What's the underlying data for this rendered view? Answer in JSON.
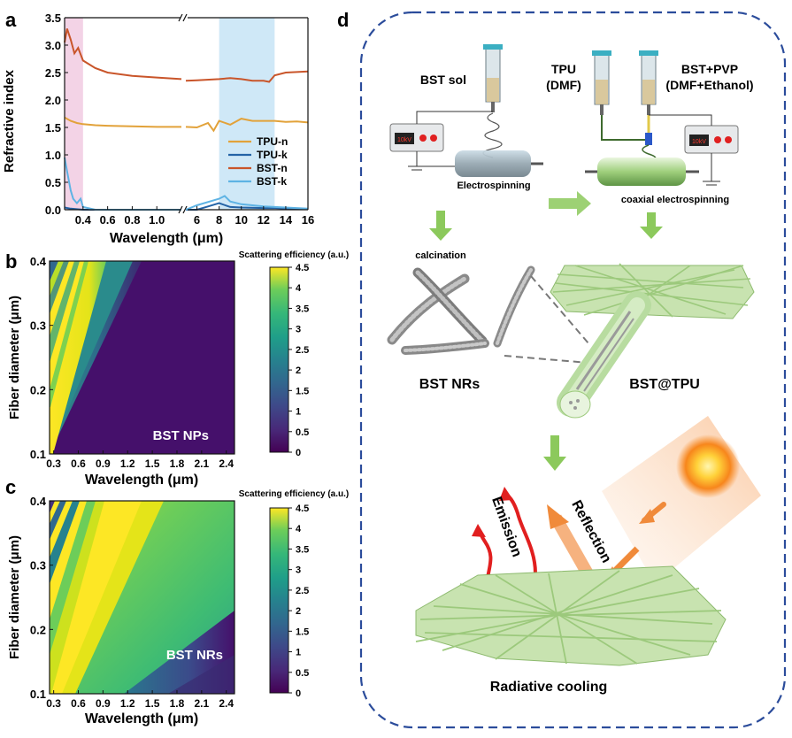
{
  "panel_letters": {
    "a": "a",
    "b": "b",
    "c": "c",
    "d": "d"
  },
  "colors": {
    "tpu_n": "#E2A23A",
    "tpu_k": "#2463A6",
    "bst_n": "#C9552A",
    "bst_k": "#5EB3E4",
    "uv_band": "#F3D3E6",
    "ir_band": "#CFE8F7",
    "dashed_border": "#2B4C9B",
    "arrow_green": "#7FBF4F",
    "mat_green": "#C8E3B0",
    "emission_red": "#E11F1F",
    "reflection_orange": "#F08A3A"
  },
  "chart_data": [
    {
      "type": "line",
      "panel": "a",
      "xlabel": "Wavelength (μm)",
      "ylabel": "Refractive index",
      "ylim": [
        0.0,
        3.5
      ],
      "yticks": [
        "0.0",
        "0.5",
        "1.0",
        "1.5",
        "2.0",
        "2.5",
        "3.0",
        "3.5"
      ],
      "x_segments": [
        {
          "range": [
            0.25,
            1.2
          ],
          "ticks": [
            "0.4",
            "0.6",
            "0.8",
            "1.0"
          ]
        },
        {
          "range": [
            5,
            16
          ],
          "ticks": [
            "6",
            "8",
            "10",
            "12",
            "14",
            "16"
          ]
        }
      ],
      "shaded_bands": [
        {
          "range": [
            0.25,
            0.4
          ],
          "color": "#F3D3E6"
        },
        {
          "range": [
            8,
            13
          ],
          "color": "#CFE8F7"
        }
      ],
      "legend_position": "right",
      "series": [
        {
          "name": "TPU-n",
          "color": "#E2A23A",
          "x": [
            0.25,
            0.3,
            0.35,
            0.4,
            0.5,
            0.6,
            0.8,
            1.0,
            1.2,
            5,
            6,
            7,
            7.5,
            8,
            9,
            10,
            11,
            12,
            13,
            14,
            15,
            16
          ],
          "y": [
            1.68,
            1.62,
            1.58,
            1.56,
            1.54,
            1.53,
            1.52,
            1.51,
            1.51,
            1.51,
            1.5,
            1.58,
            1.44,
            1.62,
            1.55,
            1.66,
            1.62,
            1.62,
            1.62,
            1.6,
            1.61,
            1.59
          ]
        },
        {
          "name": "TPU-k",
          "color": "#2463A6",
          "x": [
            0.25,
            0.3,
            0.35,
            0.4,
            0.6,
            1.0,
            1.2,
            5,
            6,
            7,
            8,
            9,
            10,
            12,
            13,
            14,
            16
          ],
          "y": [
            0.04,
            0.02,
            0.01,
            0.0,
            0.0,
            0.0,
            0.0,
            0.0,
            0.0,
            0.06,
            0.12,
            0.05,
            0.04,
            0.03,
            0.03,
            0.02,
            0.01
          ]
        },
        {
          "name": "BST-n",
          "color": "#C9552A",
          "x": [
            0.25,
            0.27,
            0.3,
            0.33,
            0.36,
            0.4,
            0.5,
            0.6,
            0.8,
            1.0,
            1.2,
            5,
            6,
            8,
            9,
            10,
            11,
            12,
            12.5,
            13,
            14,
            16
          ],
          "y": [
            3.05,
            3.3,
            3.1,
            2.85,
            2.95,
            2.72,
            2.58,
            2.5,
            2.44,
            2.41,
            2.38,
            2.35,
            2.36,
            2.38,
            2.4,
            2.38,
            2.35,
            2.35,
            2.33,
            2.45,
            2.5,
            2.52
          ]
        },
        {
          "name": "BST-k",
          "color": "#5EB3E4",
          "x": [
            0.25,
            0.27,
            0.3,
            0.32,
            0.35,
            0.38,
            0.4,
            0.5,
            1.0,
            1.2,
            5,
            6,
            8,
            8.5,
            9,
            10,
            11,
            12,
            13,
            14,
            16
          ],
          "y": [
            0.95,
            0.7,
            0.35,
            0.2,
            0.12,
            0.2,
            0.05,
            0.0,
            0.0,
            0.0,
            0.0,
            0.08,
            0.2,
            0.25,
            0.15,
            0.1,
            0.08,
            0.06,
            0.05,
            0.04,
            0.02
          ]
        }
      ]
    },
    {
      "type": "heatmap",
      "panel": "b",
      "xlabel": "Wavelength (μm)",
      "ylabel": "Fiber diameter (μm)",
      "xlim": [
        0.25,
        2.5
      ],
      "ylim": [
        0.1,
        0.4
      ],
      "xticks": [
        "0.3",
        "0.6",
        "0.9",
        "1.2",
        "1.5",
        "1.8",
        "2.1",
        "2.4"
      ],
      "yticks": [
        "0.1",
        "0.2",
        "0.3",
        "0.4"
      ],
      "colorbar_title": "Scattering efficiency (a.u.)",
      "colorbar_range": [
        0,
        4.5
      ],
      "colorbar_ticks": [
        "0",
        "0.5",
        "1",
        "1.5",
        "2",
        "2.5",
        "3",
        "3.5",
        "4",
        "4.5"
      ],
      "annotation": "BST NPs"
    },
    {
      "type": "heatmap",
      "panel": "c",
      "xlabel": "Wavelength (μm)",
      "ylabel": "Fiber diameter (μm)",
      "xlim": [
        0.25,
        2.5
      ],
      "ylim": [
        0.1,
        0.4
      ],
      "xticks": [
        "0.3",
        "0.6",
        "0.9",
        "1.2",
        "1.5",
        "1.8",
        "2.1",
        "2.4"
      ],
      "yticks": [
        "0.1",
        "0.2",
        "0.3",
        "0.4"
      ],
      "colorbar_title": "Scattering efficiency (a.u.)",
      "colorbar_range": [
        0,
        4.5
      ],
      "colorbar_ticks": [
        "0",
        "0.5",
        "1",
        "1.5",
        "2",
        "2.5",
        "3",
        "3.5",
        "4",
        "4.5"
      ],
      "annotation": "BST NRs"
    }
  ],
  "schematic": {
    "bst_sol": "BST sol",
    "tpu_line1": "TPU",
    "tpu_line2": "(DMF)",
    "bstpvp_line1": "BST+PVP",
    "bstpvp_line2": "(DMF+Ethanol)",
    "voltage_left": "10kV",
    "voltage_right": "10kV",
    "electrospinning": "Electrospinning",
    "coaxial": "coaxial electrospinning",
    "calcination": "calcination",
    "bst_nrs": "BST NRs",
    "bst_tpu": "BST@TPU",
    "emission": "Emission",
    "reflection": "Reflection",
    "radiative_cooling": "Radiative cooling"
  }
}
